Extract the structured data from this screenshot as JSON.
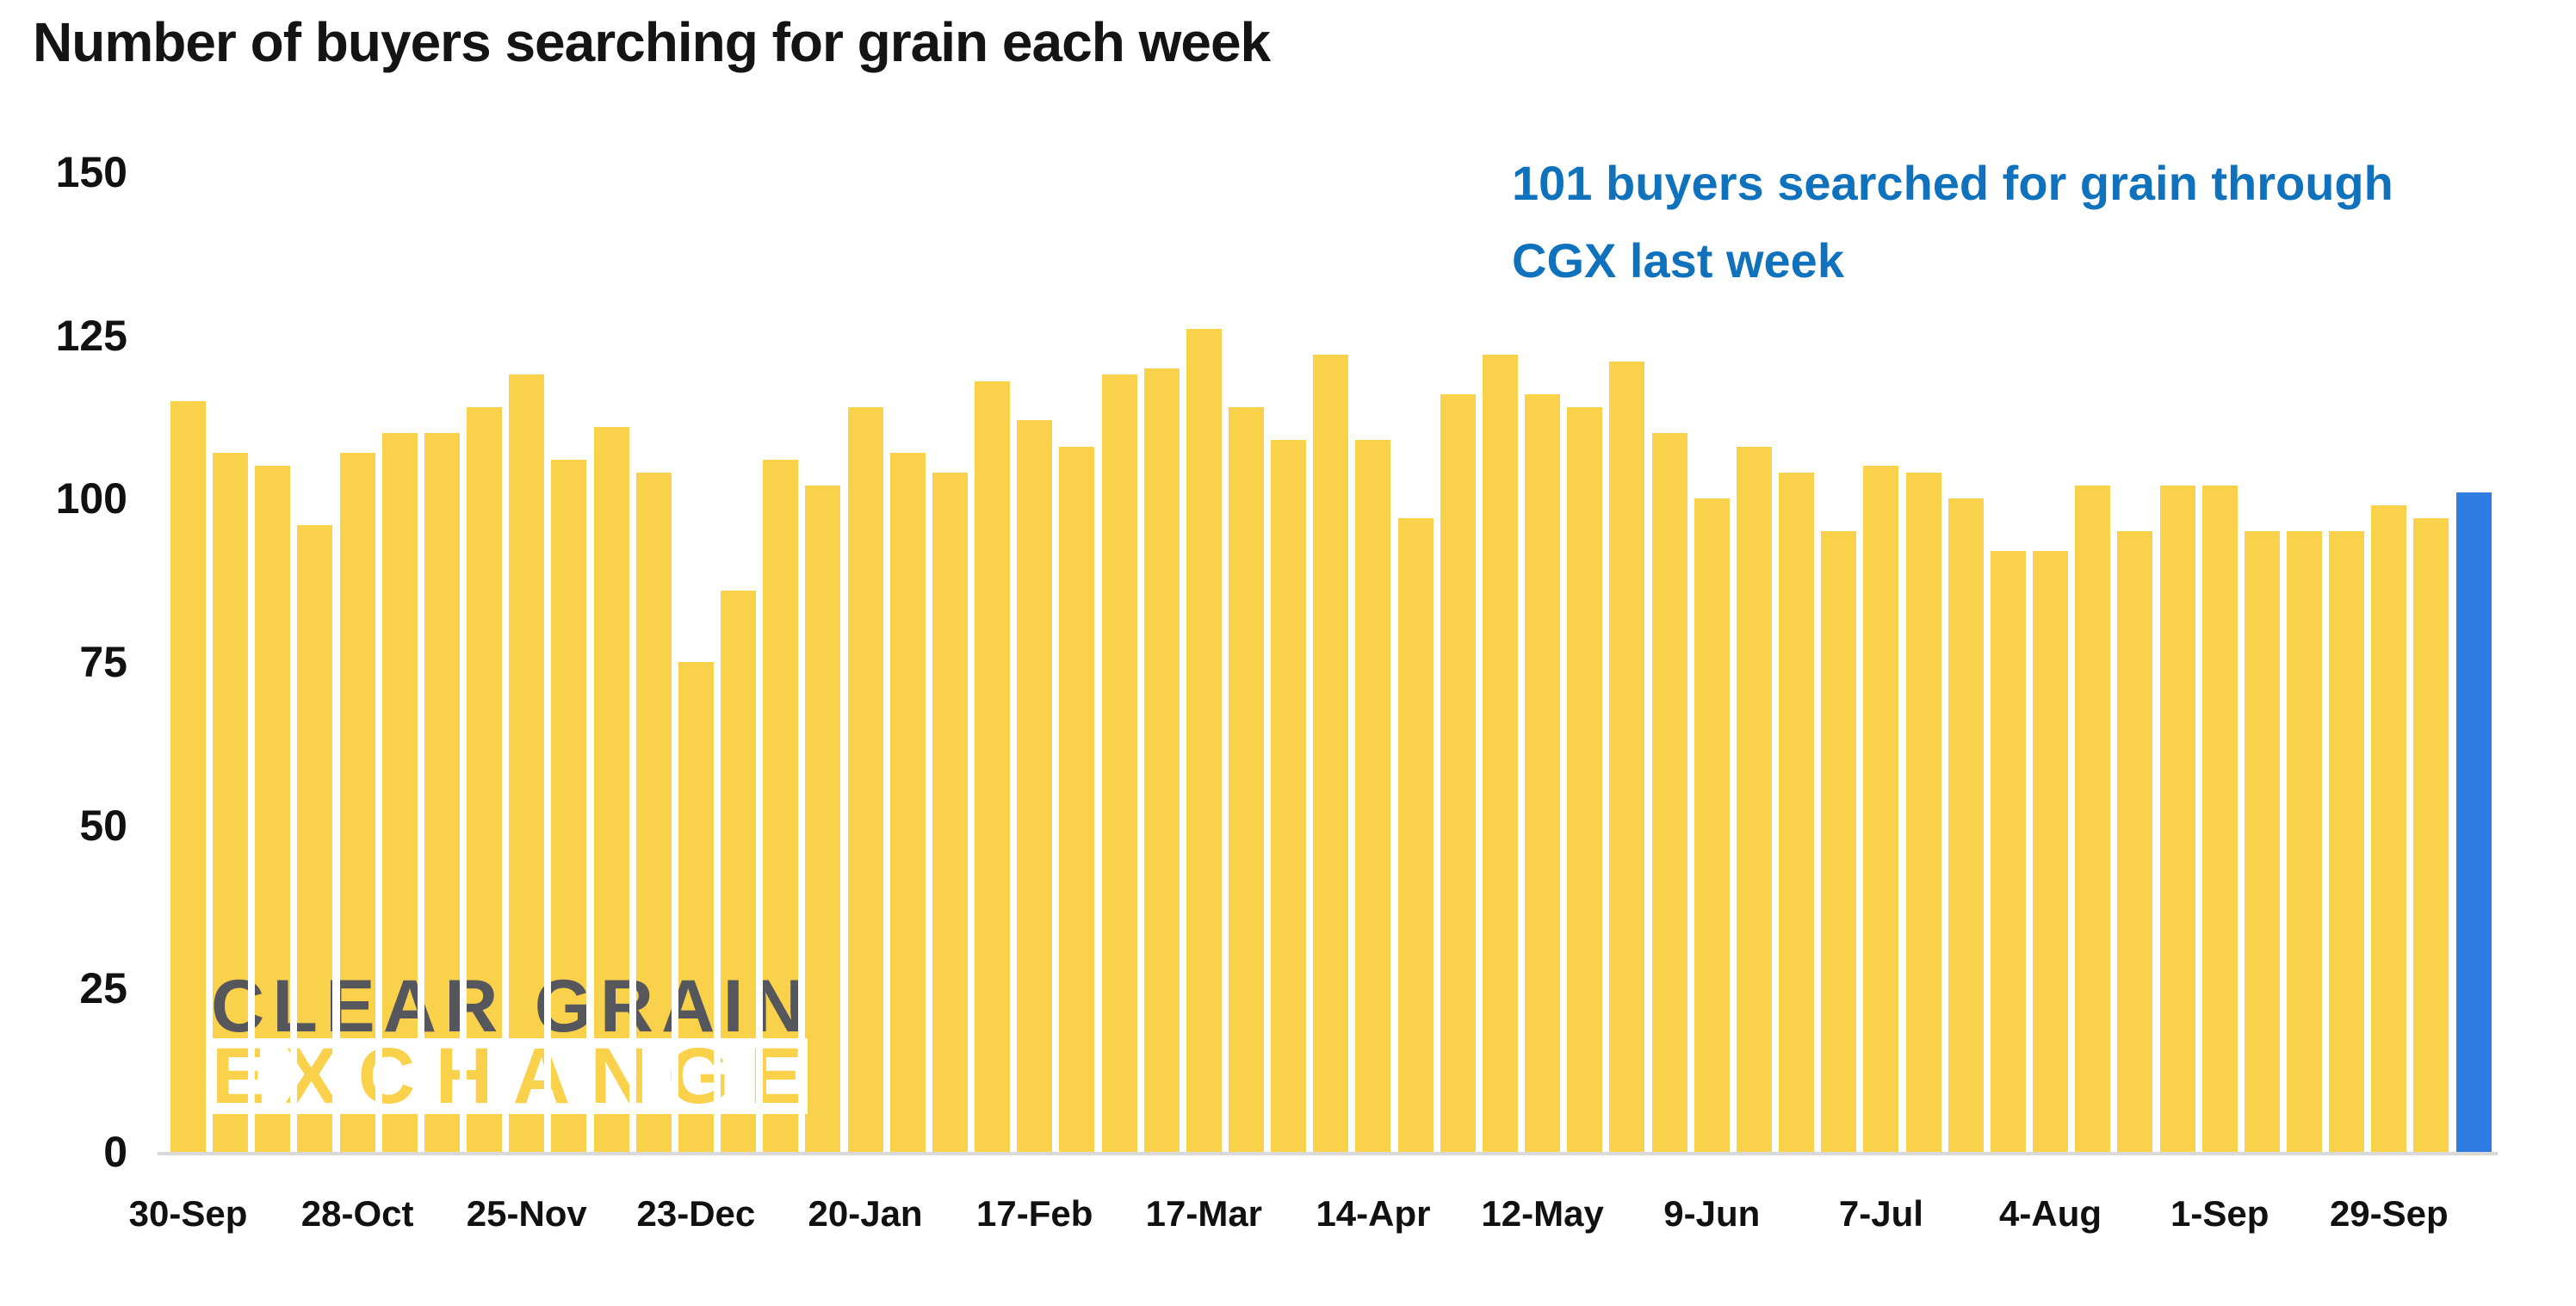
{
  "title": "Number of buyers searching for grain each week",
  "annotation": {
    "line1": "101 buyers searched for grain through",
    "line2": "CGX last week"
  },
  "watermark": {
    "line1": "CLEAR GRAIN",
    "line2": "EXCHANGE"
  },
  "colors": {
    "bar": "#F9D14B",
    "highlight_bar": "#2F7DE3",
    "annotation_text": "#1072BC",
    "title_text": "#141414",
    "axis_labels": "#111111",
    "watermark_gray_text": "#55575C",
    "axis_line": "#D9D9D9",
    "background": "#FFFFFF"
  },
  "chart_data": {
    "type": "bar",
    "title": "Number of buyers searching for grain each week",
    "xlabel": "",
    "ylabel": "",
    "ylim": [
      0,
      150
    ],
    "y_ticks": [
      0,
      25,
      50,
      75,
      100,
      125,
      150
    ],
    "grid": false,
    "legend": false,
    "bar_color": "#F9D14B",
    "highlight_color": "#2F7DE3",
    "highlight_index": 54,
    "highlight_value": 101,
    "annotation_text": "101 buyers searched for grain through CGX last week",
    "x_tick_labels": [
      "30-Sep",
      "28-Oct",
      "25-Nov",
      "23-Dec",
      "20-Jan",
      "17-Feb",
      "17-Mar",
      "14-Apr",
      "12-May",
      "9-Jun",
      "7-Jul",
      "4-Aug",
      "1-Sep",
      "29-Sep"
    ],
    "x_tick_bar_indices": [
      0,
      4,
      8,
      12,
      16,
      20,
      24,
      28,
      32,
      36,
      40,
      44,
      48,
      52
    ],
    "values": [
      115,
      107,
      105,
      96,
      107,
      110,
      110,
      114,
      119,
      106,
      111,
      104,
      75,
      86,
      106,
      102,
      114,
      107,
      104,
      118,
      112,
      108,
      119,
      120,
      126,
      114,
      109,
      122,
      109,
      97,
      116,
      122,
      116,
      114,
      121,
      110,
      100,
      108,
      104,
      95,
      105,
      104,
      100,
      92,
      92,
      102,
      95,
      102,
      102,
      95,
      95,
      95,
      99,
      97,
      101
    ]
  }
}
